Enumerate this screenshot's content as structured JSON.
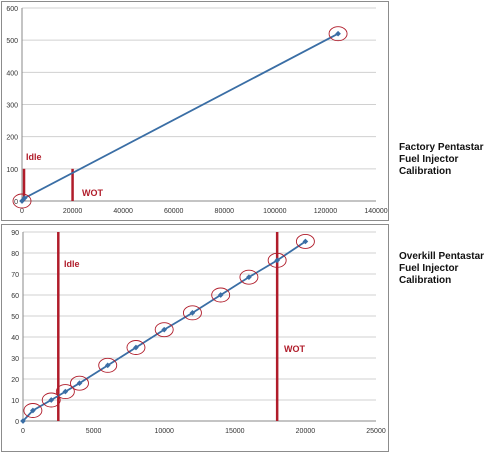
{
  "chart_data": [
    {
      "type": "line",
      "x": [
        0,
        1000,
        125000
      ],
      "series": [
        {
          "values": [
            0,
            9,
            520
          ],
          "color": "#3a6ea5"
        }
      ],
      "xlim": [
        0,
        140000
      ],
      "ylim": [
        0,
        600
      ],
      "xticks": [
        "0",
        "20000",
        "40000",
        "60000",
        "80000",
        "100000",
        "120000",
        "140000"
      ],
      "yticks": [
        "0",
        "100",
        "200",
        "300",
        "400",
        "500",
        "600"
      ],
      "grid": true,
      "circled_points": [
        [
          0,
          0
        ],
        [
          125000,
          520
        ]
      ],
      "markers": [
        {
          "label": "Idle",
          "x": 800,
          "y_top": 100,
          "color": "#b01c2a"
        },
        {
          "label": "WOT",
          "x": 20000,
          "y_top": 100,
          "color": "#b01c2a"
        }
      ],
      "side_label": [
        "Factory Pentastar",
        "Fuel Injector",
        "Calibration"
      ]
    },
    {
      "type": "line",
      "x": [
        0,
        700,
        2000,
        3000,
        4000,
        6000,
        8000,
        10000,
        12000,
        14000,
        16000,
        18000,
        20000
      ],
      "series": [
        {
          "values": [
            0,
            5,
            10,
            14,
            18,
            26.5,
            35,
            43.5,
            51.5,
            60,
            68.5,
            76.5,
            85.5
          ],
          "color": "#3a6ea5"
        }
      ],
      "xlim": [
        0,
        25000
      ],
      "ylim": [
        0,
        90
      ],
      "xticks": [
        "0",
        "5000",
        "10000",
        "15000",
        "20000",
        "25000"
      ],
      "yticks": [
        "0",
        "10",
        "20",
        "30",
        "40",
        "50",
        "60",
        "70",
        "80",
        "90"
      ],
      "grid": true,
      "circled_points": [
        [
          700,
          5
        ],
        [
          2000,
          10
        ],
        [
          3000,
          14
        ],
        [
          4000,
          18
        ],
        [
          6000,
          26.5
        ],
        [
          8000,
          35
        ],
        [
          10000,
          43.5
        ],
        [
          12000,
          51.5
        ],
        [
          14000,
          60
        ],
        [
          16000,
          68.5
        ],
        [
          18000,
          76.5
        ],
        [
          20000,
          85.5
        ]
      ],
      "markers": [
        {
          "label": "Idle",
          "x": 2500,
          "y_top": 90,
          "color": "#b01c2a"
        },
        {
          "label": "WOT",
          "x": 18000,
          "y_top": 90,
          "color": "#b01c2a"
        }
      ],
      "side_label": [
        "Overkill Pentastar",
        "Fuel Injector",
        "Calibration"
      ]
    }
  ]
}
